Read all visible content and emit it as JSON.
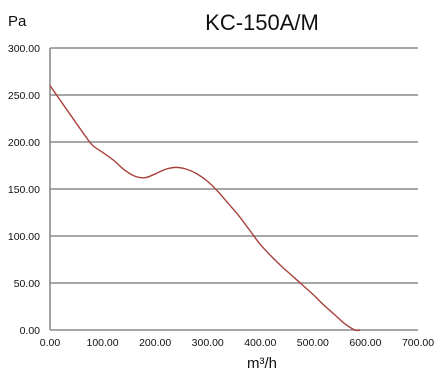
{
  "chart_data": {
    "type": "line",
    "title": "KC-150A/M",
    "ylabel": "Pa",
    "xlabel": "m³/h",
    "xlim": [
      0,
      700
    ],
    "ylim": [
      0,
      300
    ],
    "x_ticks": [
      "0.00",
      "100.00",
      "200.00",
      "300.00",
      "400.00",
      "500.00",
      "600.00",
      "700.00"
    ],
    "y_ticks": [
      "0.00",
      "50.00",
      "100.00",
      "150.00",
      "200.00",
      "250.00",
      "300.00"
    ],
    "grid": true,
    "series": [
      {
        "color": "#a9403a",
        "x": [
          0,
          20,
          40,
          60,
          80,
          100,
          120,
          140,
          160,
          180,
          200,
          220,
          240,
          260,
          280,
          300,
          320,
          340,
          360,
          380,
          400,
          420,
          440,
          460,
          480,
          500,
          520,
          540,
          560,
          580,
          590
        ],
        "y": [
          260,
          244,
          228,
          212,
          197,
          189,
          181,
          171,
          164,
          162,
          166,
          171,
          173,
          171,
          166,
          158,
          147,
          134,
          121,
          106,
          91,
          79,
          68,
          58,
          48,
          38,
          27,
          17,
          7,
          0,
          0
        ]
      }
    ]
  }
}
